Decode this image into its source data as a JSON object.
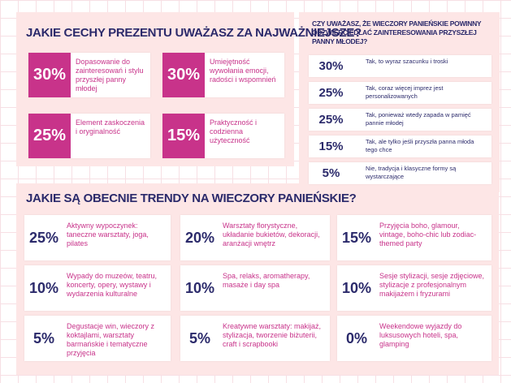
{
  "section1": {
    "title": "JAKIE CECHY PREZENTU UWAŻASZ ZA NAJWAŻNIEJSZE?",
    "items": [
      {
        "percent": "30%",
        "text": "Dopasowanie do zainteresowań i stylu przyszłej panny młodej"
      },
      {
        "percent": "30%",
        "text": "Umiejętność wywołania emocji, radości i wspomnień"
      },
      {
        "percent": "25%",
        "text": "Element zaskoczenia i oryginalność"
      },
      {
        "percent": "15%",
        "text": "Praktyczność i codzienna użyteczność"
      }
    ]
  },
  "section2": {
    "title": "CZY UWAŻASZ, ŻE WIECZORY PANIEŃSKIE POWINNY ODZWIERCIEDLAĆ ZAINTERESOWANIA PRZYSZŁEJ PANNY MŁODEJ?",
    "items": [
      {
        "percent": "30%",
        "text": "Tak, to wyraz szacunku i troski"
      },
      {
        "percent": "25%",
        "text": "Tak, coraz więcej imprez jest personalizowanych"
      },
      {
        "percent": "25%",
        "text": "Tak, ponieważ wtedy zapada w pamięć pannie młodej"
      },
      {
        "percent": "15%",
        "text": "Tak, ale tylko jeśli przyszła panna młoda tego chce"
      },
      {
        "percent": "5%",
        "text": "Nie, tradycja i klasyczne formy są wystarczające"
      }
    ]
  },
  "section3": {
    "title": "JAKIE SĄ OBECNIE TRENDY NA WIECZORY PANIEŃSKIE?",
    "items": [
      {
        "percent": "25%",
        "text": "Aktywny wypoczynek: taneczne warsztaty, joga, pilates"
      },
      {
        "percent": "20%",
        "text": "Warsztaty florystyczne, układanie bukietów, dekoracji, aranżacji wnętrz"
      },
      {
        "percent": "15%",
        "text": "Przyjęcia boho, glamour, vintage, boho-chic lub zodiac-themed party"
      },
      {
        "percent": "10%",
        "text": "Wypady do muzeów, teatru, koncerty, opery, wystawy i wydarzenia kulturalne"
      },
      {
        "percent": "10%",
        "text": "Spa, relaks, aromatherapy, masaże i day spa"
      },
      {
        "percent": "10%",
        "text": "Sesje stylizacji, sesje zdjęciowe, stylizacje z profesjonalnym makijażem i fryzurami"
      },
      {
        "percent": "5%",
        "text": "Degustacje win, wieczory z koktajlami, warsztaty barmańskie i tematyczne przyjęcia"
      },
      {
        "percent": "5%",
        "text": "Kreatywne warsztaty: makijaż, stylizacja, tworzenie biżuterii, craft i scrapbooki"
      },
      {
        "percent": "0%",
        "text": "Weekendowe wyjazdy do luksusowych hoteli, spa, glamping"
      }
    ]
  }
}
